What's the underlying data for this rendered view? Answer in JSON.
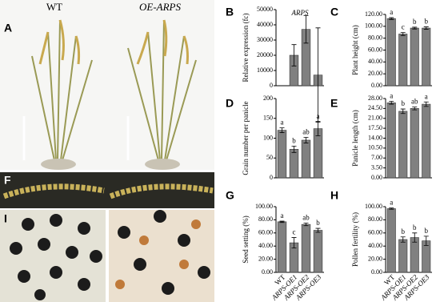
{
  "photos": {
    "columns": [
      "WT",
      "OE-ARPS"
    ],
    "labels": [
      "A",
      "F",
      "I"
    ]
  },
  "chart_data": [
    {
      "type": "bar",
      "label": "B",
      "title": "ARPS",
      "y_label": "Relative expression (fc)",
      "categories": [
        null,
        null,
        null,
        null
      ],
      "values": [
        0,
        20000,
        37000,
        7000
      ],
      "errors": [
        null,
        7000,
        9000,
        31000
      ],
      "color": "#808080",
      "ylim": [
        0,
        50000
      ],
      "yticks": [
        0,
        10000,
        20000,
        30000,
        40000,
        50000
      ]
    },
    {
      "type": "bar",
      "label": "C",
      "y_label": "Plant height (cm)",
      "categories": [
        null,
        null,
        null,
        null
      ],
      "values": [
        113,
        87,
        97,
        97
      ],
      "errors": [
        1.5,
        2.5,
        1.5,
        2
      ],
      "annotations": [
        "a",
        "c",
        "b",
        "b"
      ],
      "color": "#808080",
      "ylim": [
        0,
        120
      ],
      "yticks": [
        {
          "value": 0,
          "label": "0.00"
        },
        {
          "value": 20,
          "label": "20.00"
        },
        {
          "value": 40,
          "label": "40.00"
        },
        {
          "value": 60,
          "label": "60.00"
        },
        {
          "value": 80,
          "label": "80.00"
        },
        {
          "value": 100,
          "label": "100.00"
        },
        {
          "value": 120,
          "label": "120.00"
        }
      ]
    },
    {
      "type": "bar",
      "label": "D",
      "y_label": "Grain number per panicle",
      "categories": [
        null,
        null,
        null,
        null
      ],
      "values": [
        120,
        72,
        95,
        124
      ],
      "errors": [
        6,
        8,
        7,
        18
      ],
      "annotations": [
        "a",
        "b",
        "ab",
        "a"
      ],
      "color": "#808080",
      "ylim": [
        0,
        200
      ],
      "yticks": [
        0,
        50,
        100,
        150,
        200
      ]
    },
    {
      "type": "bar",
      "label": "E",
      "y_label": "Panicle length (cm)",
      "categories": [
        null,
        null,
        null,
        null
      ],
      "values": [
        26.5,
        23.5,
        24.5,
        26
      ],
      "errors": [
        0.5,
        0.8,
        0.5,
        0.8
      ],
      "annotations": [
        "a",
        "b",
        "ab",
        "a"
      ],
      "color": "#808080",
      "ylim": [
        0,
        28
      ],
      "yticks": [
        {
          "value": 0,
          "label": "0.00"
        },
        {
          "value": 3.5,
          "label": "3.50"
        },
        {
          "value": 7,
          "label": "7.00"
        },
        {
          "value": 10.5,
          "label": "10.50"
        },
        {
          "value": 14,
          "label": "14.00"
        },
        {
          "value": 17.5,
          "label": "17.50"
        },
        {
          "value": 21,
          "label": "21.00"
        },
        {
          "value": 24.5,
          "label": "24.50"
        },
        {
          "value": 28,
          "label": "28.00"
        }
      ]
    },
    {
      "type": "bar",
      "label": "G",
      "y_label": "Seed setting (%)",
      "categories": [
        "WT",
        "ARPS-OE1",
        "ARPS-OE2",
        "ARPS-OE3"
      ],
      "values": [
        77,
        45,
        73,
        64
      ],
      "errors": [
        1,
        8,
        2,
        3
      ],
      "annotations": [
        "a",
        "c",
        "ab",
        "b"
      ],
      "color": "#808080",
      "ylim": [
        0,
        100
      ],
      "yticks": [
        {
          "value": 0,
          "label": "0.00"
        },
        {
          "value": 20,
          "label": "20.00"
        },
        {
          "value": 40,
          "label": "40.00"
        },
        {
          "value": 60,
          "label": "60.00"
        },
        {
          "value": 80,
          "label": "80.00"
        },
        {
          "value": 100,
          "label": "100.00"
        }
      ]
    },
    {
      "type": "bar",
      "label": "H",
      "y_label": "Pollen fertility (%)",
      "categories": [
        "WT",
        "ARPS-OE1",
        "ARPS-OE2",
        "ARPS-OE3"
      ],
      "values": [
        97,
        50,
        53,
        48
      ],
      "errors": [
        1,
        4,
        7,
        7
      ],
      "annotations": [
        "a",
        "b",
        "b",
        "b"
      ],
      "color": "#808080",
      "ylim": [
        0,
        100
      ],
      "yticks": [
        {
          "value": 0,
          "label": "0.00"
        },
        {
          "value": 20,
          "label": "20.00"
        },
        {
          "value": 40,
          "label": "40.00"
        },
        {
          "value": 60,
          "label": "60.00"
        },
        {
          "value": 80,
          "label": "80.00"
        },
        {
          "value": 100,
          "label": "100.00"
        }
      ]
    }
  ]
}
